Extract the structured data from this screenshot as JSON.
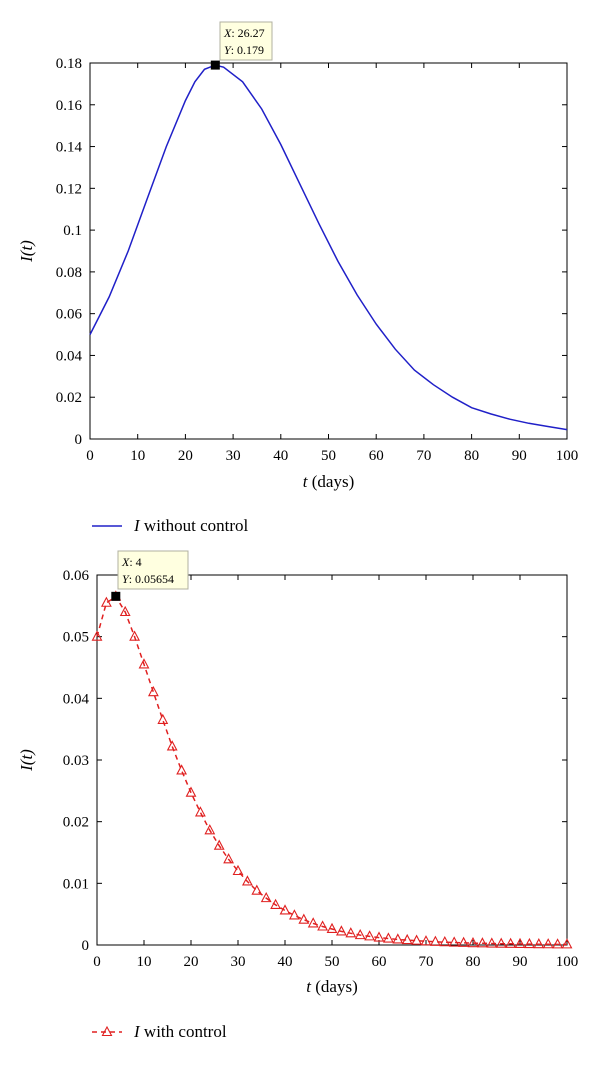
{
  "chart_data": [
    {
      "type": "line",
      "xlabel_var": "t",
      "xlabel_unit": "(days)",
      "ylabel": "I(t)",
      "xlim": [
        0,
        100
      ],
      "ylim": [
        0,
        0.18
      ],
      "xticks": [
        "0",
        "10",
        "20",
        "30",
        "40",
        "50",
        "60",
        "70",
        "80",
        "90",
        "100"
      ],
      "yticks": [
        "0",
        "0.02",
        "0.04",
        "0.06",
        "0.08",
        "0.1",
        "0.12",
        "0.14",
        "0.16",
        "0.18"
      ],
      "grid": false,
      "legend_position": "below",
      "series": [
        {
          "name": "I without control",
          "color": "#2020c8",
          "style": "solid",
          "marker": "none",
          "x": [
            0,
            4,
            8,
            12,
            16,
            20,
            22,
            24,
            26.27,
            28,
            32,
            36,
            40,
            44,
            48,
            52,
            56,
            60,
            64,
            68,
            72,
            76,
            80,
            84,
            88,
            92,
            96,
            100
          ],
          "y": [
            0.05,
            0.068,
            0.09,
            0.115,
            0.14,
            0.162,
            0.171,
            0.177,
            0.179,
            0.178,
            0.171,
            0.158,
            0.141,
            0.122,
            0.103,
            0.085,
            0.069,
            0.055,
            0.043,
            0.033,
            0.026,
            0.02,
            0.015,
            0.012,
            0.0095,
            0.0075,
            0.006,
            0.0045
          ]
        }
      ],
      "datatip": {
        "x": 26.27,
        "y": 0.179,
        "x_label": "X",
        "y_label": "Y",
        "x_text": "26.27",
        "y_text": "0.179"
      }
    },
    {
      "type": "line",
      "xlabel_var": "t",
      "xlabel_unit": "(days)",
      "ylabel": "I(t)",
      "xlim": [
        0,
        100
      ],
      "ylim": [
        0,
        0.06
      ],
      "xticks": [
        "0",
        "10",
        "20",
        "30",
        "40",
        "50",
        "60",
        "70",
        "80",
        "90",
        "100"
      ],
      "yticks": [
        "0",
        "0.01",
        "0.02",
        "0.03",
        "0.04",
        "0.05",
        "0.06"
      ],
      "grid": false,
      "legend_position": "below",
      "series": [
        {
          "name": "I with control",
          "color": "#e02020",
          "style": "dashed",
          "marker": "triangle",
          "x": [
            0,
            2,
            4,
            6,
            8,
            10,
            12,
            14,
            16,
            18,
            20,
            22,
            24,
            26,
            28,
            30,
            32,
            34,
            36,
            38,
            40,
            42,
            44,
            46,
            48,
            50,
            52,
            54,
            56,
            58,
            60,
            62,
            64,
            66,
            68,
            70,
            72,
            74,
            76,
            78,
            80,
            82,
            84,
            86,
            88,
            90,
            92,
            94,
            96,
            98,
            100
          ],
          "y": [
            0.05,
            0.0555,
            0.0565,
            0.054,
            0.05,
            0.0455,
            0.041,
            0.0365,
            0.0322,
            0.0283,
            0.0247,
            0.0215,
            0.0186,
            0.0161,
            0.0139,
            0.012,
            0.0103,
            0.0088,
            0.0076,
            0.0065,
            0.0056,
            0.0048,
            0.0041,
            0.0035,
            0.003,
            0.0026,
            0.0022,
            0.0019,
            0.0016,
            0.0014,
            0.0012,
            0.00105,
            0.0009,
            0.0008,
            0.0007,
            0.0006,
            0.00052,
            0.00046,
            0.0004,
            0.00035,
            0.0003,
            0.00027,
            0.00024,
            0.00021,
            0.00019,
            0.00017,
            0.00015,
            0.00013,
            0.00012,
            0.0001,
            0.0001
          ]
        }
      ],
      "datatip": {
        "x": 4,
        "y": 0.05654,
        "x_label": "X",
        "y_label": "Y",
        "x_text": "4",
        "y_text": "0.05654"
      }
    }
  ]
}
